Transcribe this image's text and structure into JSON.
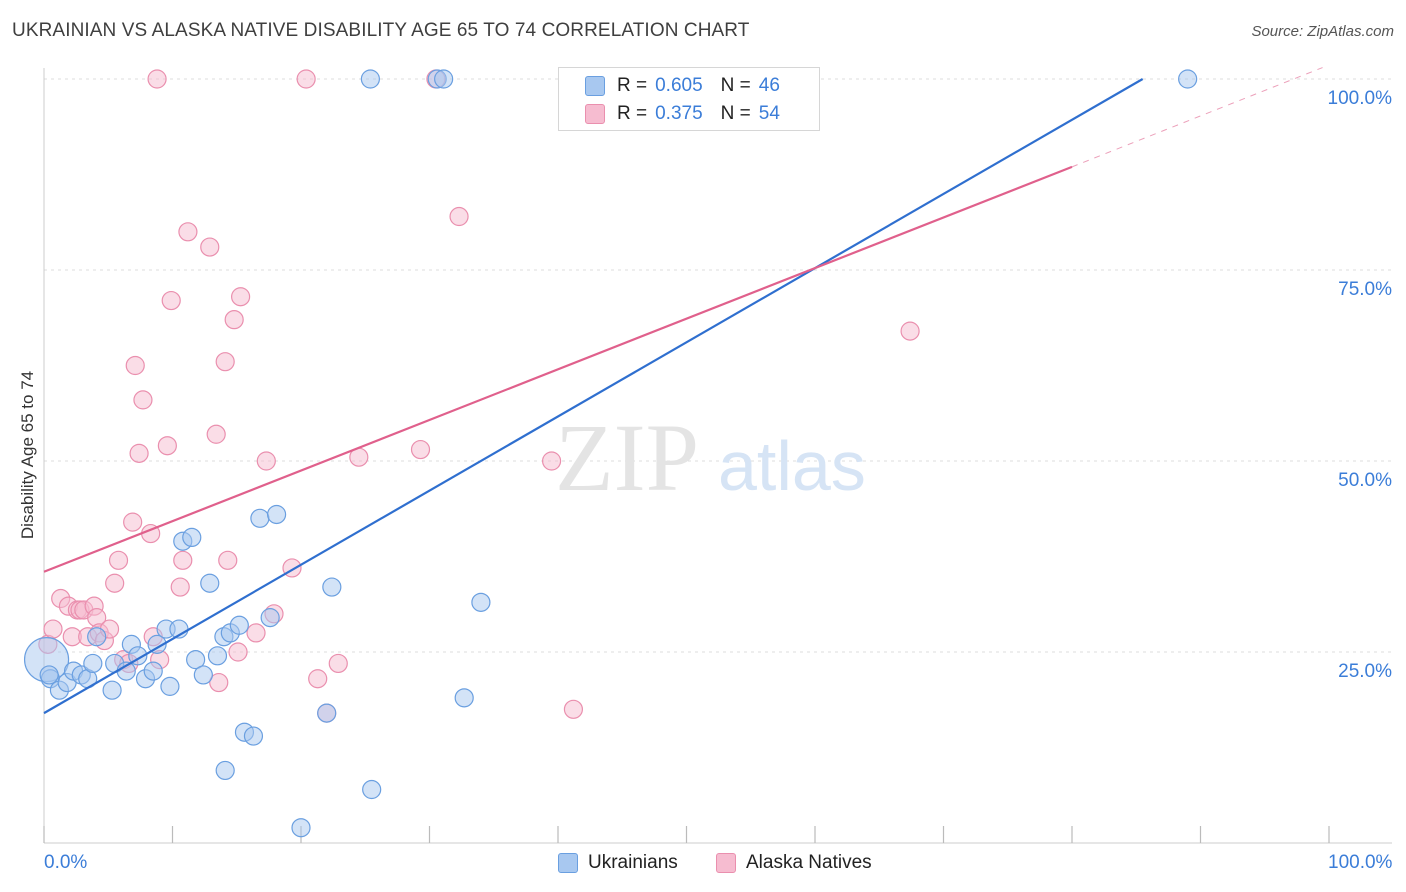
{
  "header": {
    "title": "UKRAINIAN VS ALASKA NATIVE DISABILITY AGE 65 TO 74 CORRELATION CHART",
    "source": "Source: ZipAtlas.com"
  },
  "watermark": {
    "zip": "ZIP",
    "atlas": "atlas"
  },
  "legend": {
    "series": [
      {
        "r_label": "R =",
        "r_value": "0.605",
        "n_label": "N =",
        "n_value": "46"
      },
      {
        "r_label": "R =",
        "r_value": "0.375",
        "n_label": "N =",
        "n_value": "54"
      }
    ]
  },
  "colors": {
    "blue_fill": "#a8c8f0",
    "blue_stroke": "#6a9fe0",
    "blue_line": "#2f6fcf",
    "pink_fill": "#f6bcd0",
    "pink_stroke": "#ea8fae",
    "pink_line": "#e0608c",
    "tick_text": "#3b7dd8",
    "grid": "#dddddd"
  },
  "chart_data": {
    "type": "scatter",
    "title": "UKRAINIAN VS ALASKA NATIVE DISABILITY AGE 65 TO 74 CORRELATION CHART",
    "xlabel": "",
    "ylabel": "Disability Age 65 to 74",
    "xlim": [
      0,
      100
    ],
    "ylim": [
      0,
      100
    ],
    "x_tick_labels": [
      "0.0%",
      "100.0%"
    ],
    "y_ticks": [
      25,
      50,
      75,
      100
    ],
    "y_tick_labels": [
      "25.0%",
      "50.0%",
      "75.0%",
      "100.0%"
    ],
    "grid": true,
    "legend_position": "top-center",
    "series": [
      {
        "name": "Ukrainians",
        "color": "#a8c8f0",
        "points": [
          [
            0.2,
            24
          ],
          [
            0.5,
            21.5
          ],
          [
            1.2,
            20
          ],
          [
            1.8,
            21
          ],
          [
            2.3,
            22.5
          ],
          [
            2.9,
            22
          ],
          [
            3.4,
            21.5
          ],
          [
            3.8,
            23.5
          ],
          [
            4.1,
            27
          ],
          [
            5.3,
            20
          ],
          [
            5.5,
            23.5
          ],
          [
            6.4,
            22.5
          ],
          [
            6.8,
            26
          ],
          [
            7.3,
            24.5
          ],
          [
            7.9,
            21.5
          ],
          [
            8.5,
            22.5
          ],
          [
            8.8,
            26
          ],
          [
            9.5,
            28
          ],
          [
            9.8,
            20.5
          ],
          [
            10.5,
            28
          ],
          [
            10.8,
            39.5
          ],
          [
            11.5,
            40
          ],
          [
            11.8,
            24
          ],
          [
            12.4,
            22
          ],
          [
            12.9,
            34
          ],
          [
            13.5,
            24.5
          ],
          [
            14,
            27
          ],
          [
            14.1,
            9.5
          ],
          [
            14.5,
            27.5
          ],
          [
            15.2,
            28.5
          ],
          [
            15.6,
            14.5
          ],
          [
            16.3,
            14
          ],
          [
            16.8,
            42.5
          ],
          [
            17.6,
            29.5
          ],
          [
            18.1,
            43
          ],
          [
            20,
            2
          ],
          [
            22,
            17
          ],
          [
            22.4,
            33.5
          ],
          [
            25.5,
            7
          ],
          [
            25.4,
            100
          ],
          [
            30.6,
            100
          ],
          [
            31.1,
            100
          ],
          [
            32.7,
            19
          ],
          [
            34,
            31.5
          ],
          [
            89,
            100
          ],
          [
            0.4,
            22
          ]
        ],
        "trend": {
          "x0": 0,
          "y0": 17,
          "x1": 85.5,
          "y1": 100
        }
      },
      {
        "name": "Alaska Natives",
        "color": "#f6bcd0",
        "points": [
          [
            0.3,
            26
          ],
          [
            0.7,
            28
          ],
          [
            1.3,
            32
          ],
          [
            1.9,
            31
          ],
          [
            2.2,
            27
          ],
          [
            2.6,
            30.5
          ],
          [
            2.8,
            30.5
          ],
          [
            3.1,
            30.5
          ],
          [
            3.4,
            27
          ],
          [
            3.9,
            31
          ],
          [
            4.1,
            29.5
          ],
          [
            4.3,
            27.5
          ],
          [
            4.7,
            26.5
          ],
          [
            5.1,
            28
          ],
          [
            5.5,
            34
          ],
          [
            5.8,
            37
          ],
          [
            6.2,
            24
          ],
          [
            6.6,
            23.5
          ],
          [
            6.9,
            42
          ],
          [
            7.1,
            62.5
          ],
          [
            7.4,
            51
          ],
          [
            7.7,
            58
          ],
          [
            8.3,
            40.5
          ],
          [
            8.5,
            27
          ],
          [
            8.8,
            100
          ],
          [
            9,
            24
          ],
          [
            9.6,
            52
          ],
          [
            9.9,
            71
          ],
          [
            10.6,
            33.5
          ],
          [
            10.8,
            37
          ],
          [
            11.2,
            80
          ],
          [
            12.9,
            78
          ],
          [
            13.4,
            53.5
          ],
          [
            13.6,
            21
          ],
          [
            14.1,
            63
          ],
          [
            14.3,
            37
          ],
          [
            14.8,
            68.5
          ],
          [
            15.1,
            25
          ],
          [
            15.3,
            71.5
          ],
          [
            16.5,
            27.5
          ],
          [
            17.3,
            50
          ],
          [
            17.9,
            30
          ],
          [
            19.3,
            36
          ],
          [
            20.4,
            100
          ],
          [
            21.3,
            21.5
          ],
          [
            22,
            17
          ],
          [
            22.9,
            23.5
          ],
          [
            24.5,
            50.5
          ],
          [
            29.3,
            51.5
          ],
          [
            30.5,
            100
          ],
          [
            32.3,
            82
          ],
          [
            39.5,
            50
          ],
          [
            41.2,
            17.5
          ],
          [
            67.4,
            67
          ]
        ],
        "trend": {
          "x0": 0,
          "y0": 35.5,
          "x1": 80,
          "y1": 88.5,
          "dash_x1": 99.5,
          "dash_y1": 101.5
        }
      }
    ]
  }
}
